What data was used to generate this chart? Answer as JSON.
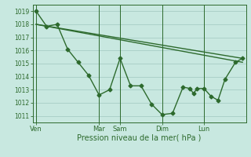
{
  "bg_color": "#c8e8e0",
  "grid_color": "#a0c8c0",
  "line_color": "#2d6a2d",
  "marker": "D",
  "marker_size": 2.5,
  "line_width": 1.0,
  "ylabel_ticks": [
    1011,
    1012,
    1013,
    1014,
    1015,
    1016,
    1017,
    1018,
    1019
  ],
  "ylim": [
    1010.5,
    1019.5
  ],
  "xlabel": "Pression niveau de la mer( hPa )",
  "xtick_labels": [
    "Ven",
    "Mar",
    "Sam",
    "Dim",
    "Lun"
  ],
  "xtick_pos": [
    0,
    36,
    48,
    72,
    96
  ],
  "line1_points": [
    [
      0,
      1019.0
    ],
    [
      6,
      1017.85
    ],
    [
      12,
      1018.0
    ],
    [
      18,
      1016.1
    ],
    [
      24,
      1015.1
    ],
    [
      30,
      1014.1
    ],
    [
      36,
      1012.6
    ],
    [
      42,
      1013.0
    ],
    [
      48,
      1015.4
    ],
    [
      54,
      1013.3
    ],
    [
      60,
      1013.3
    ],
    [
      66,
      1011.9
    ],
    [
      72,
      1011.1
    ],
    [
      78,
      1011.2
    ],
    [
      84,
      1013.2
    ],
    [
      88,
      1013.1
    ],
    [
      90,
      1012.7
    ],
    [
      92,
      1013.1
    ],
    [
      96,
      1013.1
    ],
    [
      100,
      1012.5
    ],
    [
      104,
      1012.2
    ],
    [
      108,
      1013.8
    ],
    [
      114,
      1015.1
    ],
    [
      118,
      1015.4
    ]
  ],
  "line2_points": [
    [
      0,
      1018.0
    ],
    [
      118,
      1015.1
    ]
  ],
  "line3_points": [
    [
      0,
      1018.0
    ],
    [
      118,
      1015.4
    ]
  ],
  "vline_pos": [
    0,
    36,
    48,
    72,
    96
  ],
  "xlim": [
    -2,
    120
  ]
}
